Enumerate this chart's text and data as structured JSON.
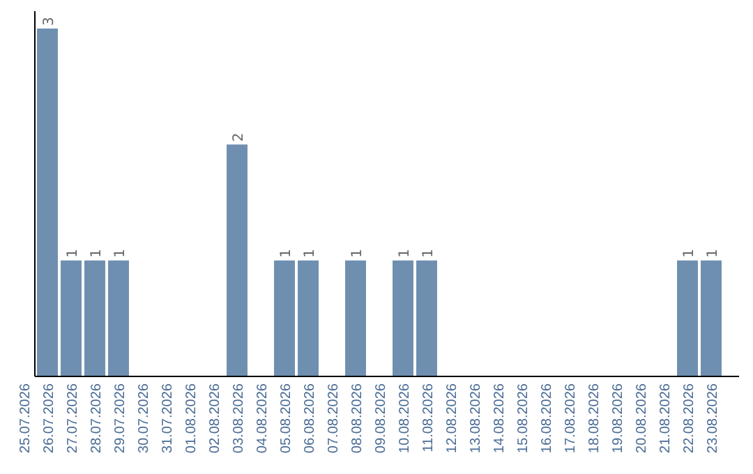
{
  "chart_data": {
    "type": "bar",
    "categories": [
      "25.07.2026",
      "26.07.2026",
      "27.07.2026",
      "28.07.2026",
      "29.07.2026",
      "30.07.2026",
      "31.07.2026",
      "01.08.2026",
      "02.08.2026",
      "03.08.2026",
      "04.08.2026",
      "05.08.2026",
      "06.08.2026",
      "07.08.2026",
      "08.08.2026",
      "09.08.2026",
      "10.08.2026",
      "11.08.2026",
      "12.08.2026",
      "13.08.2026",
      "14.08.2026",
      "15.08.2026",
      "16.08.2026",
      "17.08.2026",
      "18.08.2026",
      "19.08.2026",
      "20.08.2026",
      "21.08.2026",
      "22.08.2026",
      "23.08.2026"
    ],
    "values": [
      0,
      3,
      1,
      1,
      1,
      0,
      0,
      0,
      0,
      2,
      0,
      1,
      1,
      0,
      1,
      0,
      1,
      1,
      0,
      0,
      0,
      0,
      0,
      0,
      0,
      0,
      0,
      0,
      1,
      1
    ],
    "value_labels": [
      null,
      "3",
      "1",
      "1",
      "1",
      null,
      null,
      null,
      null,
      "2",
      null,
      "1",
      "1",
      null,
      "1",
      null,
      "1",
      "1",
      null,
      null,
      null,
      null,
      null,
      null,
      null,
      null,
      null,
      null,
      "1",
      "1"
    ],
    "color": "#6e8fb0"
  }
}
